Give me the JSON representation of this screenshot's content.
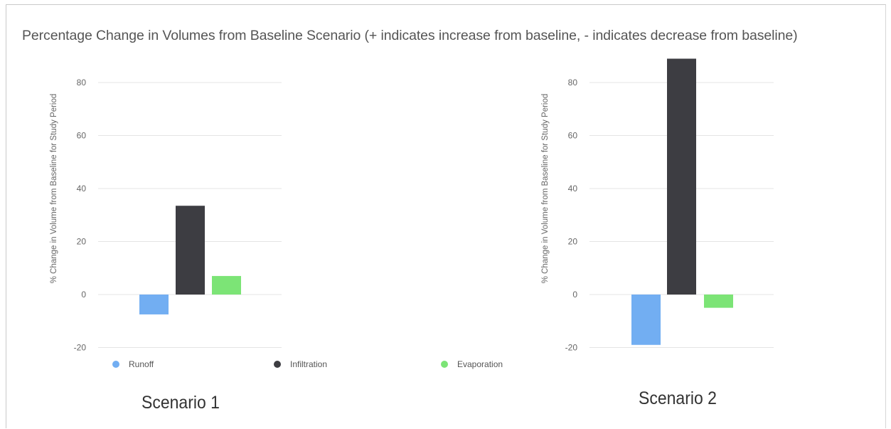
{
  "title": "Percentage Change in Volumes from Baseline Scenario (+ indicates increase from baseline, - indicates decrease from baseline)",
  "legend": [
    {
      "name": "Runoff",
      "color": "#72aef2"
    },
    {
      "name": "Infiltration",
      "color": "#3d3d42"
    },
    {
      "name": "Evaporation",
      "color": "#7ce476"
    }
  ],
  "chart_data": [
    {
      "type": "bar",
      "label": "Scenario 1",
      "ylabel": "% Change in Volume from Baseline for Study Period",
      "categories": [
        "Runoff",
        "Infiltration",
        "Evaporation"
      ],
      "values": [
        -7.5,
        33.5,
        7
      ],
      "ylim": [
        -20,
        90
      ],
      "yticks": [
        80,
        60,
        40,
        20,
        0,
        -20
      ],
      "grid": true,
      "legend_position": "bottom"
    },
    {
      "type": "bar",
      "label": "Scenario 2",
      "ylabel": "% Change in Volume from Baseline for Study Period",
      "categories": [
        "Runoff",
        "Infiltration",
        "Evaporation"
      ],
      "values": [
        -19,
        89,
        -5
      ],
      "ylim": [
        -20,
        90
      ],
      "yticks": [
        80,
        60,
        40,
        20,
        0,
        -20
      ],
      "grid": true,
      "legend_position": "none"
    }
  ]
}
